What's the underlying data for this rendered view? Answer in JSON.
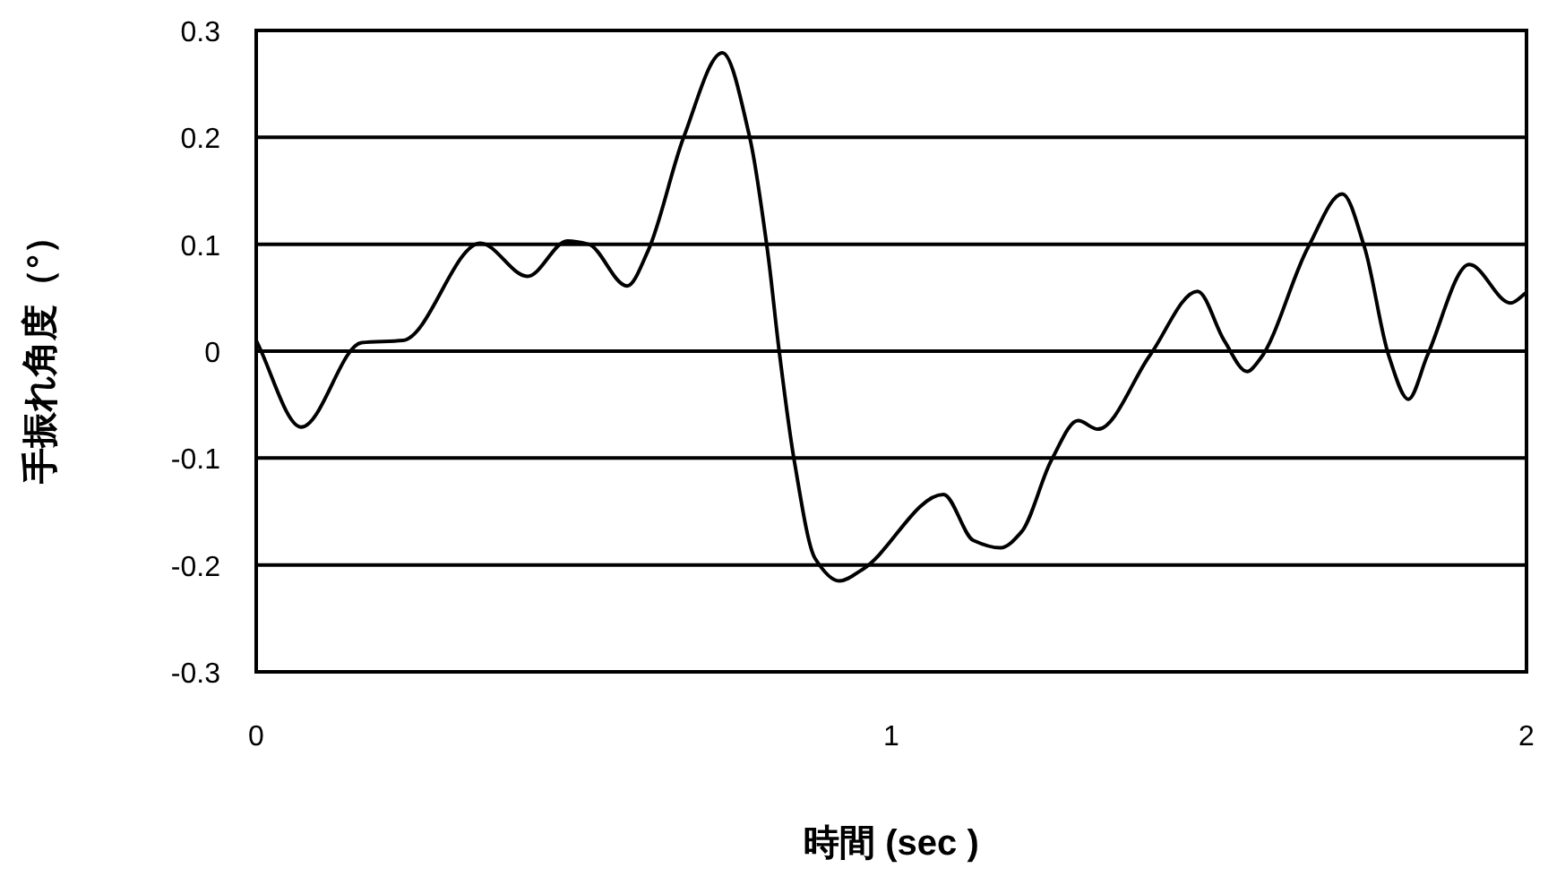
{
  "chart_data": {
    "type": "line",
    "xlabel": "時間 (sec )",
    "ylabel": "手振れ角度（°）",
    "x": [
      0,
      0.071,
      0.166,
      0.231,
      0.353,
      0.427,
      0.49,
      0.523,
      0.584,
      0.617,
      0.673,
      0.734,
      0.777,
      0.805,
      0.824,
      0.847,
      0.88,
      0.918,
      0.955,
      1.082,
      1.129,
      1.172,
      1.205,
      1.252,
      1.294,
      1.325,
      1.407,
      1.482,
      1.524,
      1.56,
      1.581,
      1.656,
      1.71,
      1.745,
      1.783,
      1.814,
      1.844,
      1.91,
      1.975,
      2.0
    ],
    "series": [
      {
        "color": "#000000",
        "values": [
          0.01,
          -0.071,
          0.008,
          0.01,
          0.101,
          0.07,
          0.103,
          0.1,
          0.061,
          0.094,
          0.2,
          0.279,
          0.2,
          0.094,
          -0.003,
          -0.102,
          -0.194,
          -0.215,
          -0.204,
          -0.134,
          -0.177,
          -0.184,
          -0.169,
          -0.102,
          -0.065,
          -0.073,
          -0.004,
          0.056,
          0.01,
          -0.019,
          -0.007,
          0.097,
          0.147,
          0.097,
          -0.004,
          -0.045,
          -0.004,
          0.081,
          0.045,
          0.055
        ]
      }
    ],
    "xlim": [
      0,
      2
    ],
    "ylim": [
      -0.3,
      0.3
    ],
    "xticks": [
      0,
      1,
      2
    ],
    "yticks": [
      -0.3,
      -0.2,
      -0.1,
      0,
      0.1,
      0.2,
      0.3
    ],
    "grid": "y"
  }
}
